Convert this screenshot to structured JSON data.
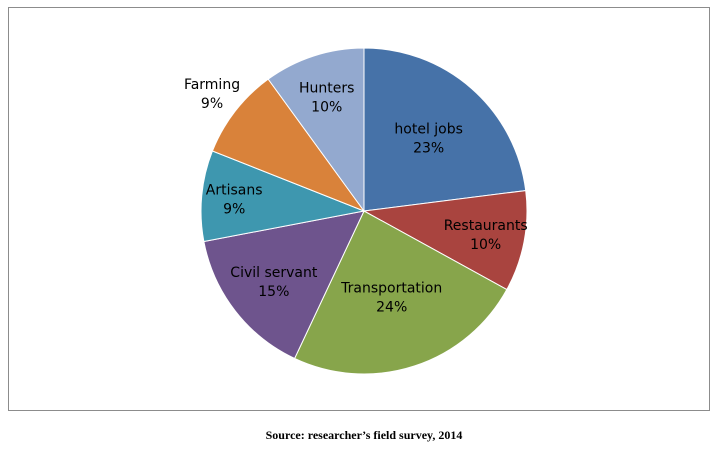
{
  "chart_data": {
    "type": "pie",
    "title": "",
    "slices": [
      {
        "label": "hotel jobs",
        "pct_label": "23%",
        "value": 23,
        "color": "#4672A8"
      },
      {
        "label": "Restaurants",
        "pct_label": "10%",
        "value": 10,
        "color": "#A9443F"
      },
      {
        "label": "Transportation",
        "pct_label": "24%",
        "value": 24,
        "color": "#87A54B"
      },
      {
        "label": "Civil servant",
        "pct_label": "15%",
        "value": 15,
        "color": "#6E548D"
      },
      {
        "label": "Artisans",
        "pct_label": "9%",
        "value": 9,
        "color": "#3E97AF"
      },
      {
        "label": "Farming",
        "pct_label": "9%",
        "value": 9,
        "color": "#D9823A"
      },
      {
        "label": "Hunters",
        "pct_label": "10%",
        "value": 10,
        "color": "#93A9CF"
      }
    ],
    "start": "12 o'clock",
    "direction": "clockwise",
    "legend": "none"
  },
  "source_note": "Source: researcher’s field survey, 2014"
}
